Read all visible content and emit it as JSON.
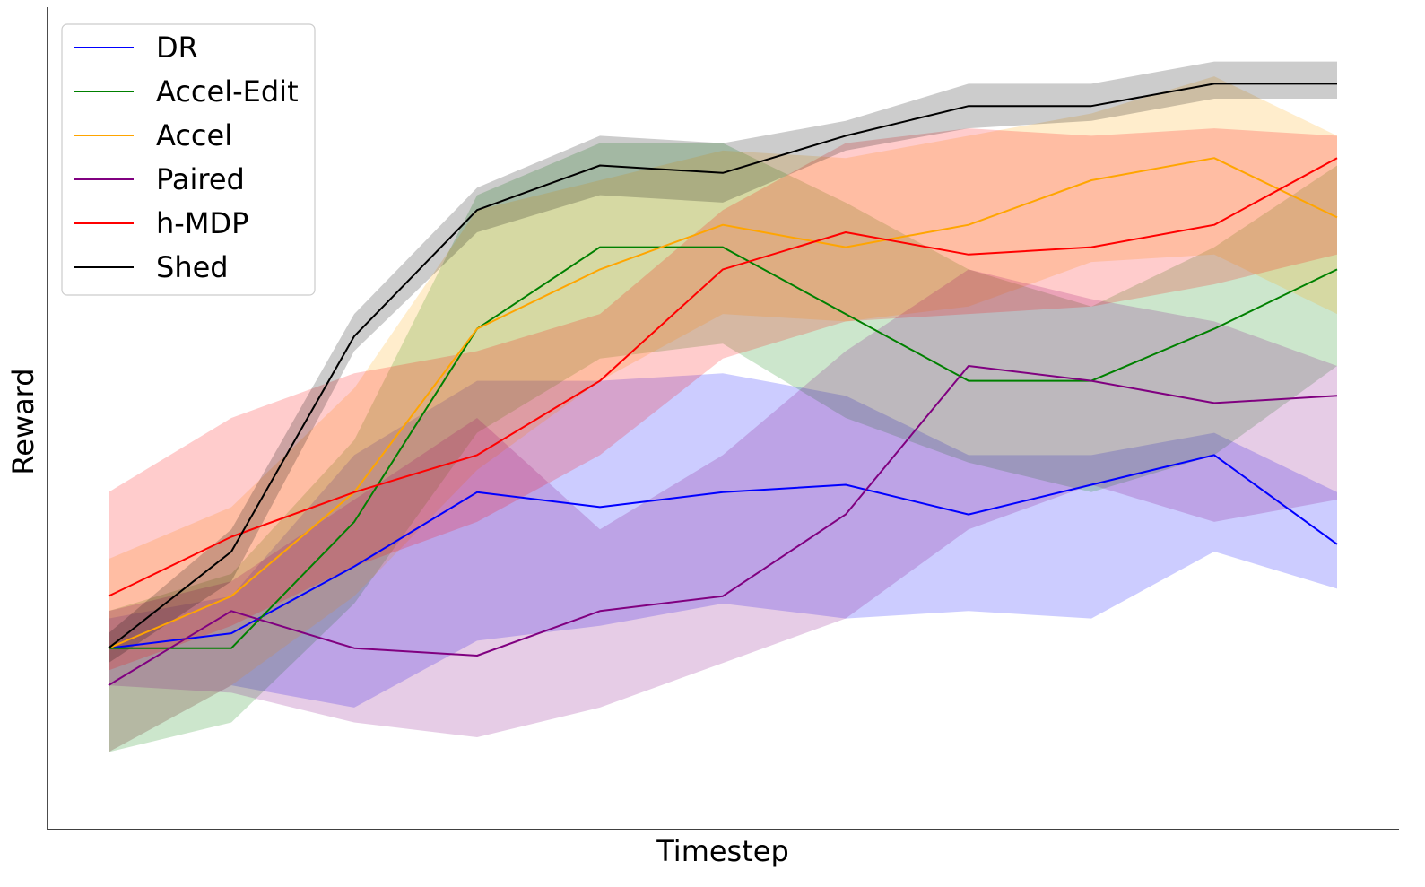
{
  "chart_data": {
    "type": "line",
    "title": "",
    "xlabel": "Timestep",
    "ylabel": "Reward",
    "x_ticks_visible": false,
    "y_ticks_visible": false,
    "grid": false,
    "legend_position": "top-left",
    "xlim": [
      0,
      1
    ],
    "ylim": [
      0,
      1
    ],
    "series": [
      {
        "name": "DR",
        "color": "#0000ff",
        "x": [
          0,
          0.1,
          0.2,
          0.3,
          0.4,
          0.5,
          0.6,
          0.7,
          0.8,
          0.9,
          1.0
        ],
        "y": [
          0.19,
          0.21,
          0.3,
          0.4,
          0.38,
          0.4,
          0.41,
          0.37,
          0.41,
          0.45,
          0.33
        ],
        "y_low": [
          0.05,
          0.14,
          0.11,
          0.2,
          0.22,
          0.25,
          0.23,
          0.24,
          0.23,
          0.32,
          0.27
        ],
        "y_high": [
          0.23,
          0.26,
          0.45,
          0.55,
          0.55,
          0.56,
          0.53,
          0.45,
          0.45,
          0.48,
          0.4
        ]
      },
      {
        "name": "Accel-Edit",
        "color": "#008000",
        "x": [
          0,
          0.1,
          0.2,
          0.3,
          0.4,
          0.5,
          0.6,
          0.7,
          0.8,
          0.9,
          1.0
        ],
        "y": [
          0.19,
          0.19,
          0.36,
          0.62,
          0.73,
          0.73,
          0.64,
          0.55,
          0.55,
          0.62,
          0.7
        ],
        "y_low": [
          0.05,
          0.09,
          0.25,
          0.48,
          0.58,
          0.6,
          0.5,
          0.44,
          0.4,
          0.45,
          0.57
        ],
        "y_high": [
          0.24,
          0.29,
          0.47,
          0.8,
          0.87,
          0.87,
          0.79,
          0.7,
          0.65,
          0.73,
          0.84
        ]
      },
      {
        "name": "Accel",
        "color": "#ffa500",
        "x": [
          0,
          0.1,
          0.2,
          0.3,
          0.4,
          0.5,
          0.6,
          0.7,
          0.8,
          0.9,
          1.0
        ],
        "y": [
          0.19,
          0.26,
          0.4,
          0.62,
          0.7,
          0.76,
          0.73,
          0.76,
          0.82,
          0.85,
          0.77
        ],
        "y_low": [
          0.05,
          0.14,
          0.26,
          0.43,
          0.55,
          0.64,
          0.63,
          0.65,
          0.71,
          0.72,
          0.64
        ],
        "y_high": [
          0.31,
          0.38,
          0.54,
          0.78,
          0.82,
          0.86,
          0.85,
          0.88,
          0.91,
          0.96,
          0.88
        ]
      },
      {
        "name": "Paired",
        "color": "#800080",
        "x": [
          0,
          0.1,
          0.2,
          0.3,
          0.4,
          0.5,
          0.6,
          0.7,
          0.8,
          0.9,
          1.0
        ],
        "y": [
          0.14,
          0.24,
          0.19,
          0.18,
          0.24,
          0.26,
          0.37,
          0.57,
          0.55,
          0.52,
          0.53
        ],
        "y_low": [
          0.14,
          0.13,
          0.09,
          0.07,
          0.11,
          0.17,
          0.23,
          0.35,
          0.41,
          0.36,
          0.39
        ],
        "y_high": [
          0.24,
          0.28,
          0.39,
          0.5,
          0.35,
          0.45,
          0.59,
          0.7,
          0.66,
          0.63,
          0.57
        ]
      },
      {
        "name": "h-MDP",
        "color": "#ff0000",
        "x": [
          0,
          0.1,
          0.2,
          0.3,
          0.4,
          0.5,
          0.6,
          0.7,
          0.8,
          0.9,
          1.0
        ],
        "y": [
          0.26,
          0.34,
          0.4,
          0.45,
          0.55,
          0.7,
          0.75,
          0.72,
          0.73,
          0.76,
          0.85
        ],
        "y_low": [
          0.16,
          0.22,
          0.3,
          0.36,
          0.45,
          0.58,
          0.63,
          0.64,
          0.65,
          0.68,
          0.72
        ],
        "y_high": [
          0.4,
          0.5,
          0.56,
          0.59,
          0.64,
          0.78,
          0.87,
          0.89,
          0.88,
          0.89,
          0.88
        ]
      },
      {
        "name": "Shed",
        "color": "#000000",
        "x": [
          0,
          0.1,
          0.2,
          0.3,
          0.4,
          0.5,
          0.6,
          0.7,
          0.8,
          0.9,
          1.0
        ],
        "y": [
          0.19,
          0.32,
          0.61,
          0.78,
          0.84,
          0.83,
          0.88,
          0.92,
          0.92,
          0.95,
          0.95
        ],
        "y_low": [
          0.17,
          0.28,
          0.59,
          0.75,
          0.8,
          0.79,
          0.86,
          0.89,
          0.9,
          0.93,
          0.93
        ],
        "y_high": [
          0.21,
          0.35,
          0.64,
          0.81,
          0.88,
          0.87,
          0.9,
          0.95,
          0.95,
          0.98,
          0.98
        ]
      }
    ]
  }
}
